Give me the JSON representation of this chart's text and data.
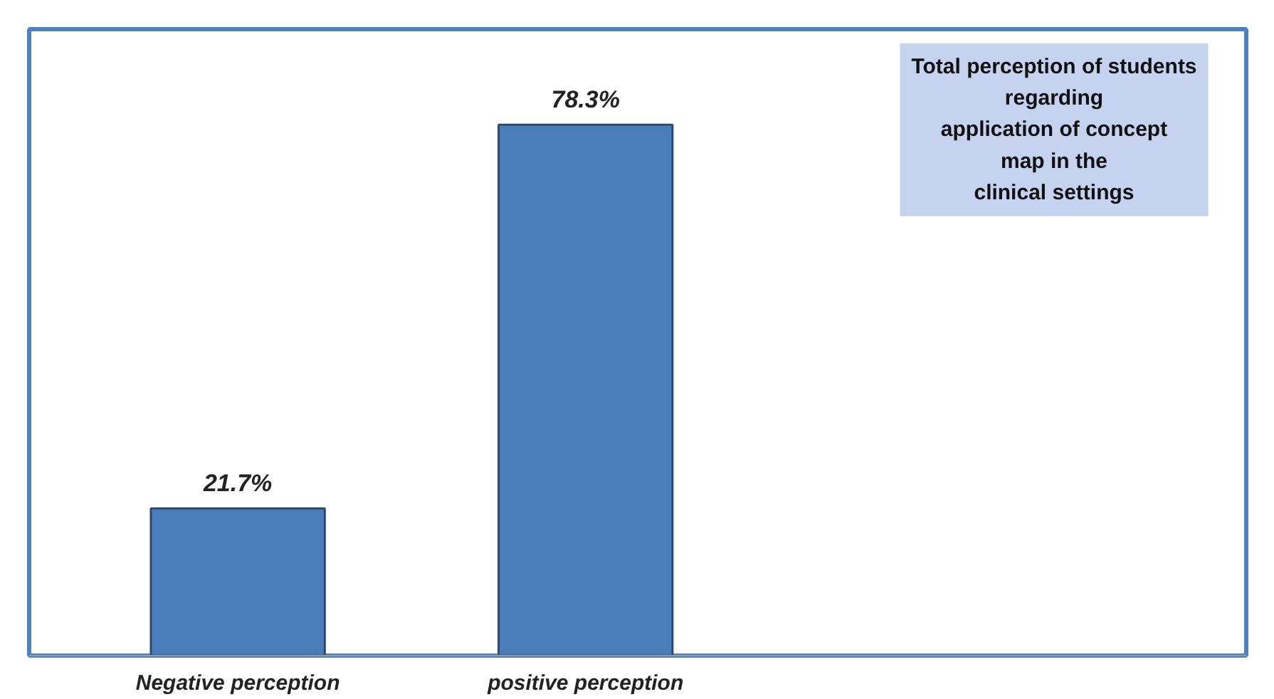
{
  "chart_data": {
    "type": "bar",
    "title": "Total perception of students\nregarding\napplication of concept\nmap in the\nclinical settings",
    "categories": [
      "Negative perception",
      "positive perception"
    ],
    "values": [
      21.7,
      78.3
    ],
    "color": "#4a7ebb",
    "value_labels": [
      "21.7%",
      "78.3%"
    ]
  }
}
